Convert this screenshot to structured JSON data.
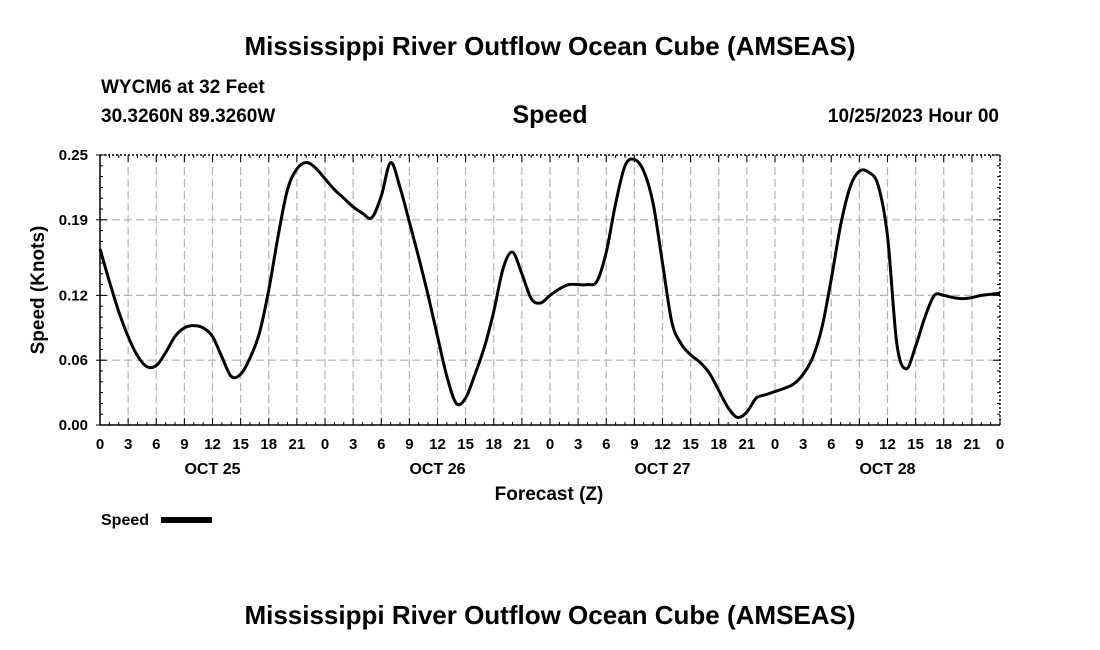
{
  "header": {
    "title_top": "Mississippi River Outflow Ocean Cube (AMSEAS)",
    "station": "WYCM6 at 32 Feet",
    "coords": "30.3260N  89.3260W",
    "subtitle": "Speed",
    "timestamp": "10/25/2023 Hour 00",
    "title_bottom": "Mississippi River Outflow Ocean Cube (AMSEAS)"
  },
  "legend": {
    "label": "Speed",
    "color": "#000000"
  },
  "chart_data": {
    "type": "line",
    "title": "Speed",
    "xlabel": "Forecast (Z)",
    "ylabel": "Speed (Knots)",
    "xlim": [
      0,
      96
    ],
    "ylim": [
      0,
      0.25
    ],
    "yticks": [
      0.0,
      0.06,
      0.12,
      0.19,
      0.25
    ],
    "ytick_labels": [
      "0.00",
      "0.06",
      "0.12",
      "0.19",
      "0.25"
    ],
    "xticks": [
      0,
      3,
      6,
      9,
      12,
      15,
      18,
      21,
      24,
      27,
      30,
      33,
      36,
      39,
      42,
      45,
      48,
      51,
      54,
      57,
      60,
      63,
      66,
      69,
      72,
      75,
      78,
      81,
      84,
      87,
      90,
      93,
      96
    ],
    "xtick_labels": [
      "0",
      "3",
      "6",
      "9",
      "12",
      "15",
      "18",
      "21",
      "0",
      "3",
      "6",
      "9",
      "12",
      "15",
      "18",
      "21",
      "0",
      "3",
      "6",
      "9",
      "12",
      "15",
      "18",
      "21",
      "0",
      "3",
      "6",
      "9",
      "12",
      "15",
      "18",
      "21",
      "0"
    ],
    "date_labels": [
      {
        "text": "OCT 25",
        "x": 12
      },
      {
        "text": "OCT 26",
        "x": 36
      },
      {
        "text": "OCT 27",
        "x": 60
      },
      {
        "text": "OCT 28",
        "x": 84
      }
    ],
    "grid": true,
    "series": [
      {
        "name": "Speed",
        "color": "#000000",
        "x": [
          0,
          1,
          2,
          3,
          4,
          5,
          6,
          7,
          8,
          9,
          10,
          11,
          12,
          13,
          14,
          15,
          16,
          17,
          18,
          19,
          20,
          21,
          22,
          23,
          24,
          25,
          26,
          27,
          28,
          29,
          30,
          31,
          32,
          33,
          34,
          35,
          36,
          37,
          38,
          39,
          40,
          41,
          42,
          43,
          44,
          45,
          46,
          47,
          48,
          49,
          50,
          51,
          52,
          53,
          54,
          55,
          56,
          57,
          58,
          59,
          60,
          61,
          62,
          63,
          64,
          65,
          66,
          67,
          68,
          69,
          70,
          71,
          72,
          73,
          74,
          75,
          76,
          77,
          78,
          79,
          80,
          81,
          82,
          83,
          84,
          85,
          86,
          87,
          88,
          89,
          90,
          91,
          92,
          93,
          94,
          95,
          96
        ],
        "values": [
          0.163,
          0.133,
          0.105,
          0.082,
          0.064,
          0.054,
          0.055,
          0.067,
          0.082,
          0.09,
          0.092,
          0.09,
          0.082,
          0.063,
          0.045,
          0.047,
          0.062,
          0.085,
          0.125,
          0.175,
          0.218,
          0.237,
          0.243,
          0.238,
          0.228,
          0.218,
          0.21,
          0.202,
          0.196,
          0.192,
          0.212,
          0.243,
          0.22,
          0.188,
          0.155,
          0.12,
          0.082,
          0.045,
          0.02,
          0.025,
          0.047,
          0.072,
          0.105,
          0.145,
          0.16,
          0.14,
          0.117,
          0.113,
          0.12,
          0.126,
          0.13,
          0.13,
          0.13,
          0.133,
          0.16,
          0.205,
          0.24,
          0.246,
          0.235,
          0.205,
          0.15,
          0.095,
          0.075,
          0.065,
          0.058,
          0.048,
          0.032,
          0.016,
          0.007,
          0.012,
          0.025,
          0.028,
          0.031,
          0.034,
          0.038,
          0.047,
          0.062,
          0.09,
          0.135,
          0.185,
          0.22,
          0.235,
          0.234,
          0.222,
          0.175,
          0.075,
          0.052,
          0.073,
          0.1,
          0.12,
          0.12,
          0.118,
          0.117,
          0.118,
          0.12,
          0.121,
          0.122
        ]
      }
    ]
  }
}
